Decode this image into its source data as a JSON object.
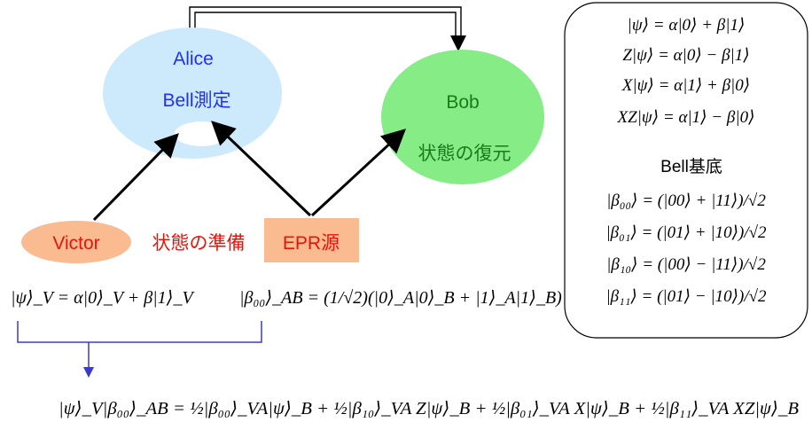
{
  "nodes": {
    "alice": {
      "name": "Alice",
      "task": "Bell測定",
      "fill": "#cdeafc"
    },
    "bob": {
      "name": "Bob",
      "task": "状態の復元",
      "fill": "#86ec86"
    },
    "victor": {
      "name": "Victor",
      "fill": "#f9bb8f"
    },
    "epr": {
      "name": "EPR源",
      "fill": "#f9bb8f"
    },
    "preparation": "状態の準備"
  },
  "equations": {
    "victor_state": "|ψ⟩_V = α|0⟩_V + β|1⟩_V",
    "epr_state": "|β₀₀⟩_AB = (1/√2)(|0⟩_A|0⟩_B + |1⟩_A|1⟩_B)",
    "expansion": "|ψ⟩_V|β₀₀⟩_AB = ½|β₀₀⟩_VA|ψ⟩_B + ½|β₁₀⟩_VA Z|ψ⟩_B + ½|β₀₁⟩_VA X|ψ⟩_B + ½|β₁₁⟩_VA XZ|ψ⟩_B"
  },
  "panel": {
    "ops": [
      "|ψ⟩ = α|0⟩ + β|1⟩",
      "Z|ψ⟩ = α|0⟩ − β|1⟩",
      "X|ψ⟩ = α|1⟩ + β|0⟩",
      "XZ|ψ⟩ = α|1⟩ − β|0⟩"
    ],
    "bell_title": "Bell基底",
    "bell": [
      "|β₀₀⟩ = (|00⟩ + |11⟩)/√2",
      "|β₀₁⟩ = (|01⟩ + |10⟩)/√2",
      "|β₁₀⟩ = (|00⟩ − |11⟩)/√2",
      "|β₁₁⟩ = (|01⟩ − |10⟩)/√2"
    ]
  },
  "colors": {
    "bracket": "#3b3bc8",
    "arrow": "#000000"
  }
}
